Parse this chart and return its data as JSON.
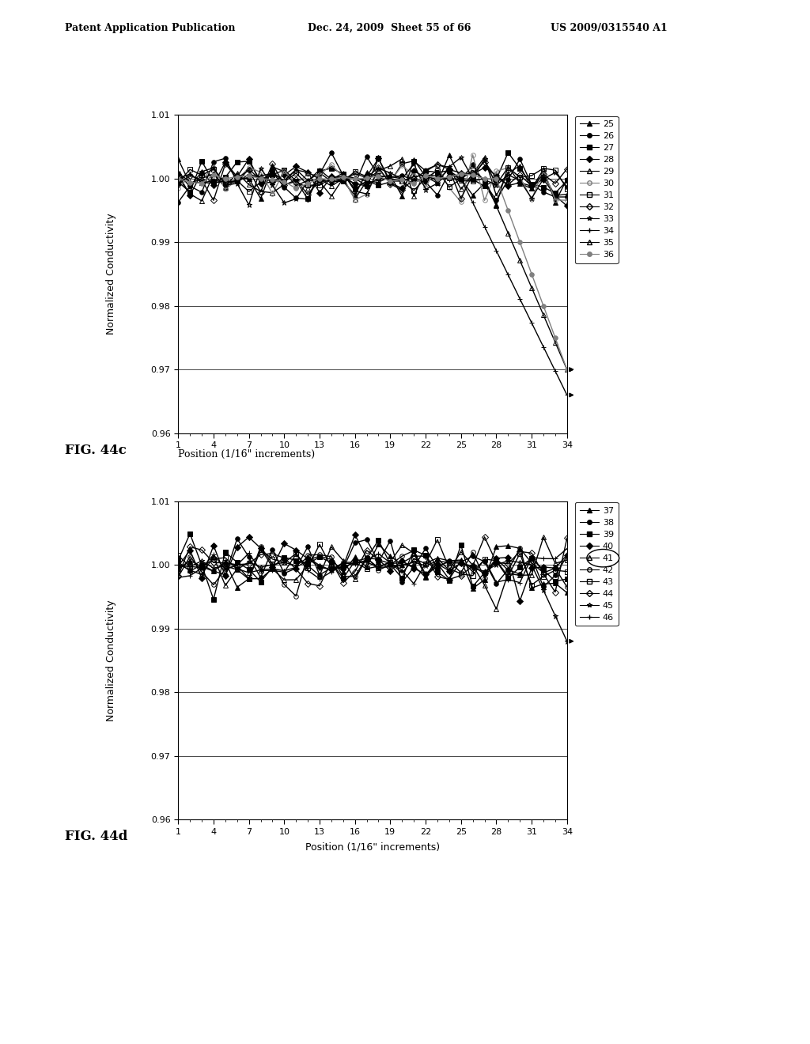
{
  "header_left": "Patent Application Publication",
  "header_mid": "Dec. 24, 2009  Sheet 55 of 66",
  "header_right": "US 2009/0315540 A1",
  "fig_top_label": "FIG. 44c",
  "fig_top_xlabel_caption": "Position (1/16\" increments)",
  "fig_bot_label": "FIG. 44d",
  "fig_bot_xlabel": "Position (1/16\" increments)",
  "ylabel": "Normalized Conductivity",
  "xlim": [
    1,
    34
  ],
  "ylim": [
    0.96,
    1.01
  ],
  "xticks": [
    1,
    4,
    7,
    10,
    13,
    16,
    19,
    22,
    25,
    28,
    31,
    34
  ],
  "yticks": [
    0.96,
    0.97,
    0.98,
    0.99,
    1.0,
    1.01
  ],
  "top_series_labels": [
    "25",
    "26",
    "27",
    "28",
    "29",
    "30",
    "31",
    "32",
    "33",
    "34",
    "35",
    "36"
  ],
  "bot_series_labels": [
    "37",
    "38",
    "39",
    "40",
    "41",
    "42",
    "43",
    "44",
    "45",
    "46"
  ]
}
